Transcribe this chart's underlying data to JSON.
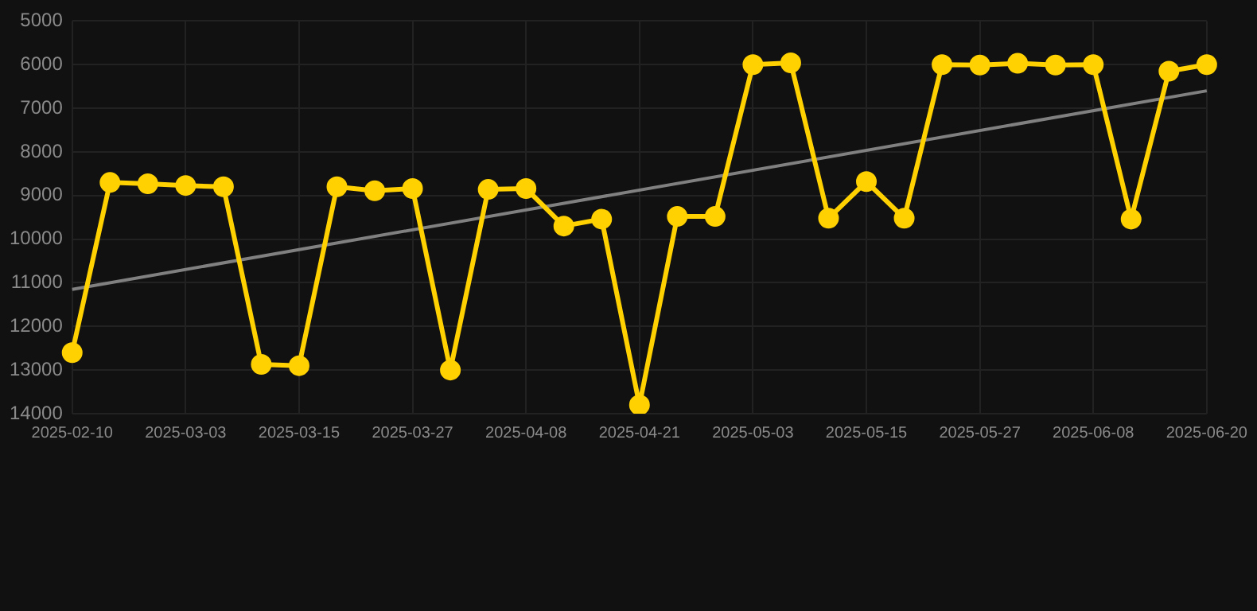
{
  "chart_data": {
    "type": "line",
    "categories": [
      "2025-02-10",
      null,
      null,
      "2025-03-03",
      null,
      null,
      "2025-03-15",
      null,
      null,
      "2025-03-27",
      null,
      null,
      "2025-04-08",
      null,
      null,
      "2025-04-21",
      null,
      null,
      "2025-05-03",
      null,
      null,
      "2025-05-15",
      null,
      null,
      "2025-05-27",
      null,
      null,
      "2025-06-08",
      null,
      null,
      "2025-06-20"
    ],
    "series": [
      {
        "color": "#ffd100",
        "marker": "circle",
        "values": [
          12600,
          8700,
          8730,
          8770,
          8800,
          12870,
          12900,
          8800,
          8890,
          8840,
          13000,
          8860,
          8840,
          9700,
          9540,
          13800,
          9480,
          9480,
          6000,
          5960,
          9520,
          8680,
          9520,
          6000,
          6010,
          5970,
          6010,
          6000,
          9540,
          6150,
          6000
        ]
      },
      {
        "color": "#808080",
        "marker": "none",
        "values": [
          11150,
          null,
          null,
          null,
          null,
          null,
          null,
          null,
          null,
          null,
          null,
          null,
          null,
          null,
          null,
          null,
          null,
          null,
          null,
          null,
          null,
          null,
          null,
          null,
          null,
          null,
          null,
          null,
          null,
          null,
          6600
        ]
      }
    ],
    "ylim": [
      14000,
      5000
    ],
    "yticks": [
      5000,
      6000,
      7000,
      8000,
      9000,
      10000,
      11000,
      12000,
      13000,
      14000
    ],
    "grid": true,
    "legend": false
  }
}
